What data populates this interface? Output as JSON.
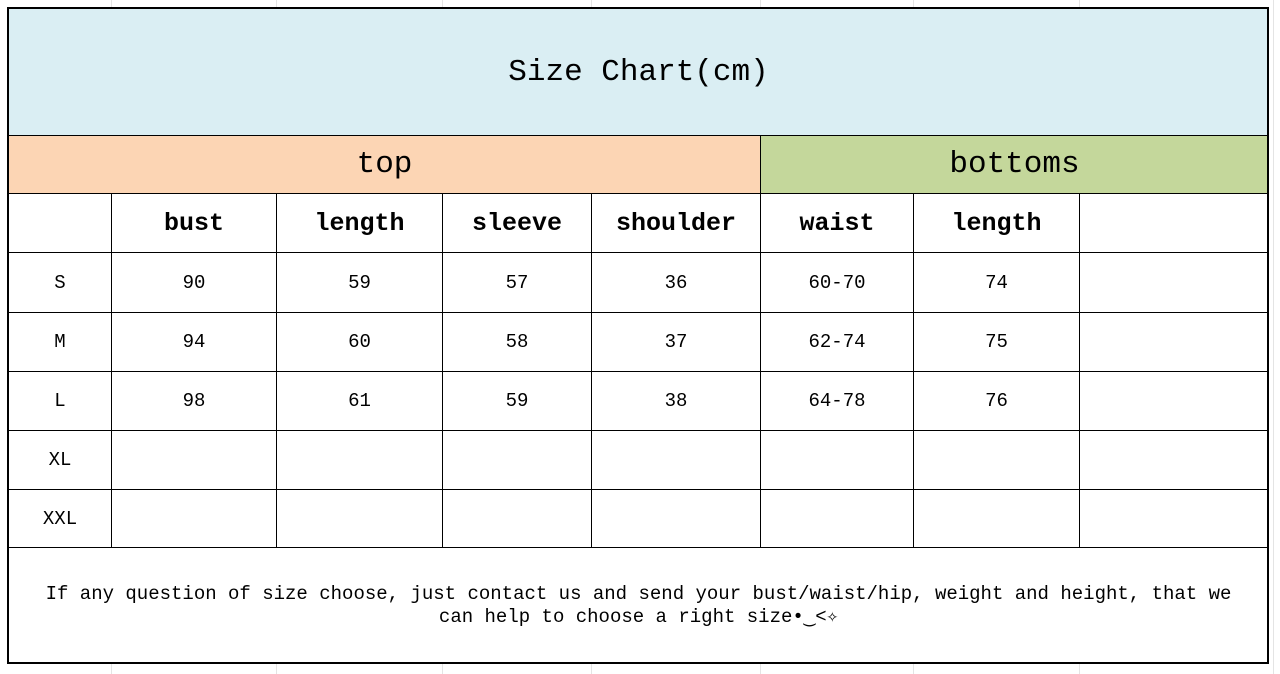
{
  "title": "Size Chart(cm)",
  "groups": {
    "top": "top",
    "bottoms": "bottoms"
  },
  "table": {
    "headers": [
      "bust",
      "length",
      "sleeve",
      "shoulder",
      "waist",
      "length"
    ],
    "rows": [
      {
        "size": "S",
        "cells": [
          90,
          59,
          57,
          36,
          "60-70",
          74
        ]
      },
      {
        "size": "M",
        "cells": [
          94,
          60,
          58,
          37,
          "62-74",
          75
        ]
      },
      {
        "size": "L",
        "cells": [
          98,
          61,
          59,
          38,
          "64-78",
          76
        ]
      },
      {
        "size": "XL"
      },
      {
        "size": "XXL"
      }
    ]
  },
  "footer": {
    "note": "If any question of size choose, just contact us and send your bust/waist/hip, weight and height, that we can help to choose a right size•‿<✧"
  }
}
